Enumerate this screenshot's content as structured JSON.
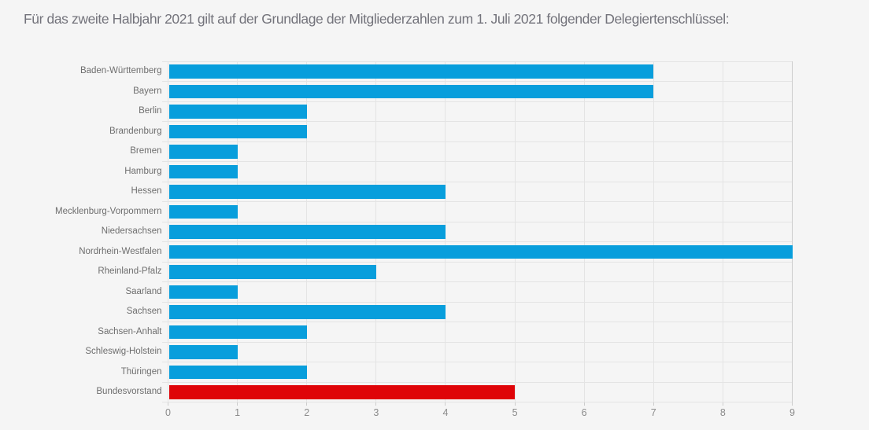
{
  "title": "Für das zweite Halbjahr 2021 gilt auf der Grundlage der Mitgliederzahlen zum 1. Juli 2021 folgender Delegiertenschlüssel:",
  "chart_data": {
    "type": "bar",
    "orientation": "horizontal",
    "title": "Für das zweite Halbjahr 2021 gilt auf der Grundlage der Mitgliederzahlen zum 1. Juli 2021 folgender Delegiertenschlüssel:",
    "categories": [
      "Baden-Württemberg",
      "Bayern",
      "Berlin",
      "Brandenburg",
      "Bremen",
      "Hamburg",
      "Hessen",
      "Mecklenburg-Vorpommern",
      "Niedersachsen",
      "Nordrhein-Westfalen",
      "Rheinland-Pfalz",
      "Saarland",
      "Sachsen",
      "Sachsen-Anhalt",
      "Schleswig-Holstein",
      "Thüringen",
      "Bundesvorstand"
    ],
    "values": [
      7,
      7,
      2,
      2,
      1,
      1,
      4,
      1,
      4,
      9,
      3,
      1,
      4,
      2,
      1,
      2,
      5
    ],
    "highlight_category": "Bundesvorstand",
    "xlabel": "",
    "ylabel": "",
    "xlim": [
      0,
      9
    ],
    "x_ticks": [
      "0",
      "1",
      "2",
      "3",
      "4",
      "5",
      "6",
      "7",
      "8",
      "9"
    ],
    "grid": "both",
    "legend": "none",
    "colors": {
      "bar_default": "#089edc",
      "bar_highlight": "#df0408",
      "background": "#f5f5f5",
      "grid_line": "#e4e4e4",
      "grid_line_strong": "#cccccc",
      "title_text": "#73737b",
      "category_text": "#6e6e6e",
      "axis_text": "#8b8b8b"
    }
  }
}
